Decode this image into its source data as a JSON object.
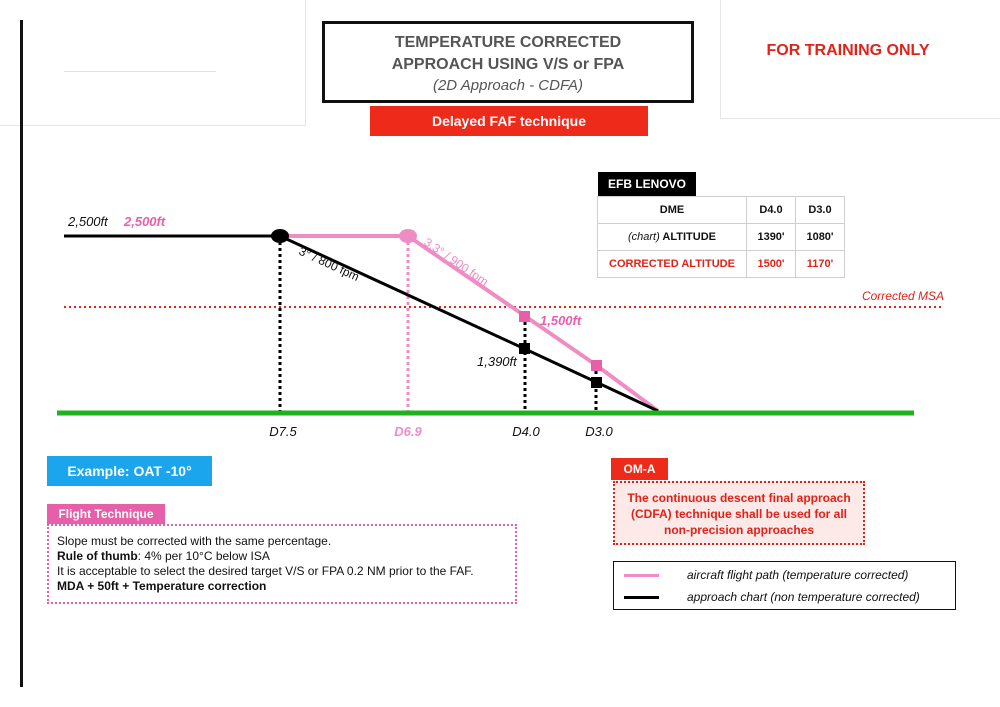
{
  "header": {
    "title_line1": "TEMPERATURE CORRECTED",
    "title_line2": "APPROACH USING V/S or FPA",
    "subtitle": "(2D Approach - CDFA)",
    "training_notice": "FOR TRAINING ONLY",
    "technique_label": "Delayed FAF technique"
  },
  "efb": {
    "title": "EFB LENOVO",
    "columns": [
      "DME",
      "D4.0",
      "D3.0"
    ],
    "chart_row": {
      "label_prefix": "(chart)",
      "label": "ALTITUDE",
      "values": [
        "1390'",
        "1080'"
      ]
    },
    "corrected_row": {
      "label": "CORRECTED ALTITUDE",
      "values": [
        "1500'",
        "1170'"
      ]
    }
  },
  "diagram": {
    "altitude_chart": "2,500ft",
    "altitude_corrected": "2,500ft",
    "slope_chart": "3° / 800 fpm",
    "slope_corrected": "3.3° / 900 fpm",
    "msa_label": "Corrected MSA",
    "label_1500": "1,500ft",
    "label_1390": "1,390ft",
    "dme_markers": [
      "D7.5",
      "D6.9",
      "D4.0",
      "D3.0"
    ],
    "colors": {
      "chart": "#000000",
      "corrected": "#f08cc4",
      "ground": "#1fb21f",
      "msa": "#e0231a"
    }
  },
  "example": {
    "label": "Example: OAT -10°"
  },
  "flight_technique": {
    "tag": "Flight Technique",
    "line1": "Slope must be corrected with the same percentage.",
    "rule_bold": "Rule of thumb",
    "rule_rest": ": 4% per 10°C below ISA",
    "line3": "It is acceptable to select the desired target V/S or FPA 0.2 NM prior to the FAF.",
    "line4": "MDA + 50ft + Temperature correction"
  },
  "oma": {
    "tag": "OM-A",
    "text": "The continuous descent final approach (CDFA) technique shall be used for all non-precision approaches"
  },
  "legend": {
    "corrected": "aircraft flight path (temperature corrected)",
    "chart": "approach chart (non temperature corrected)"
  }
}
